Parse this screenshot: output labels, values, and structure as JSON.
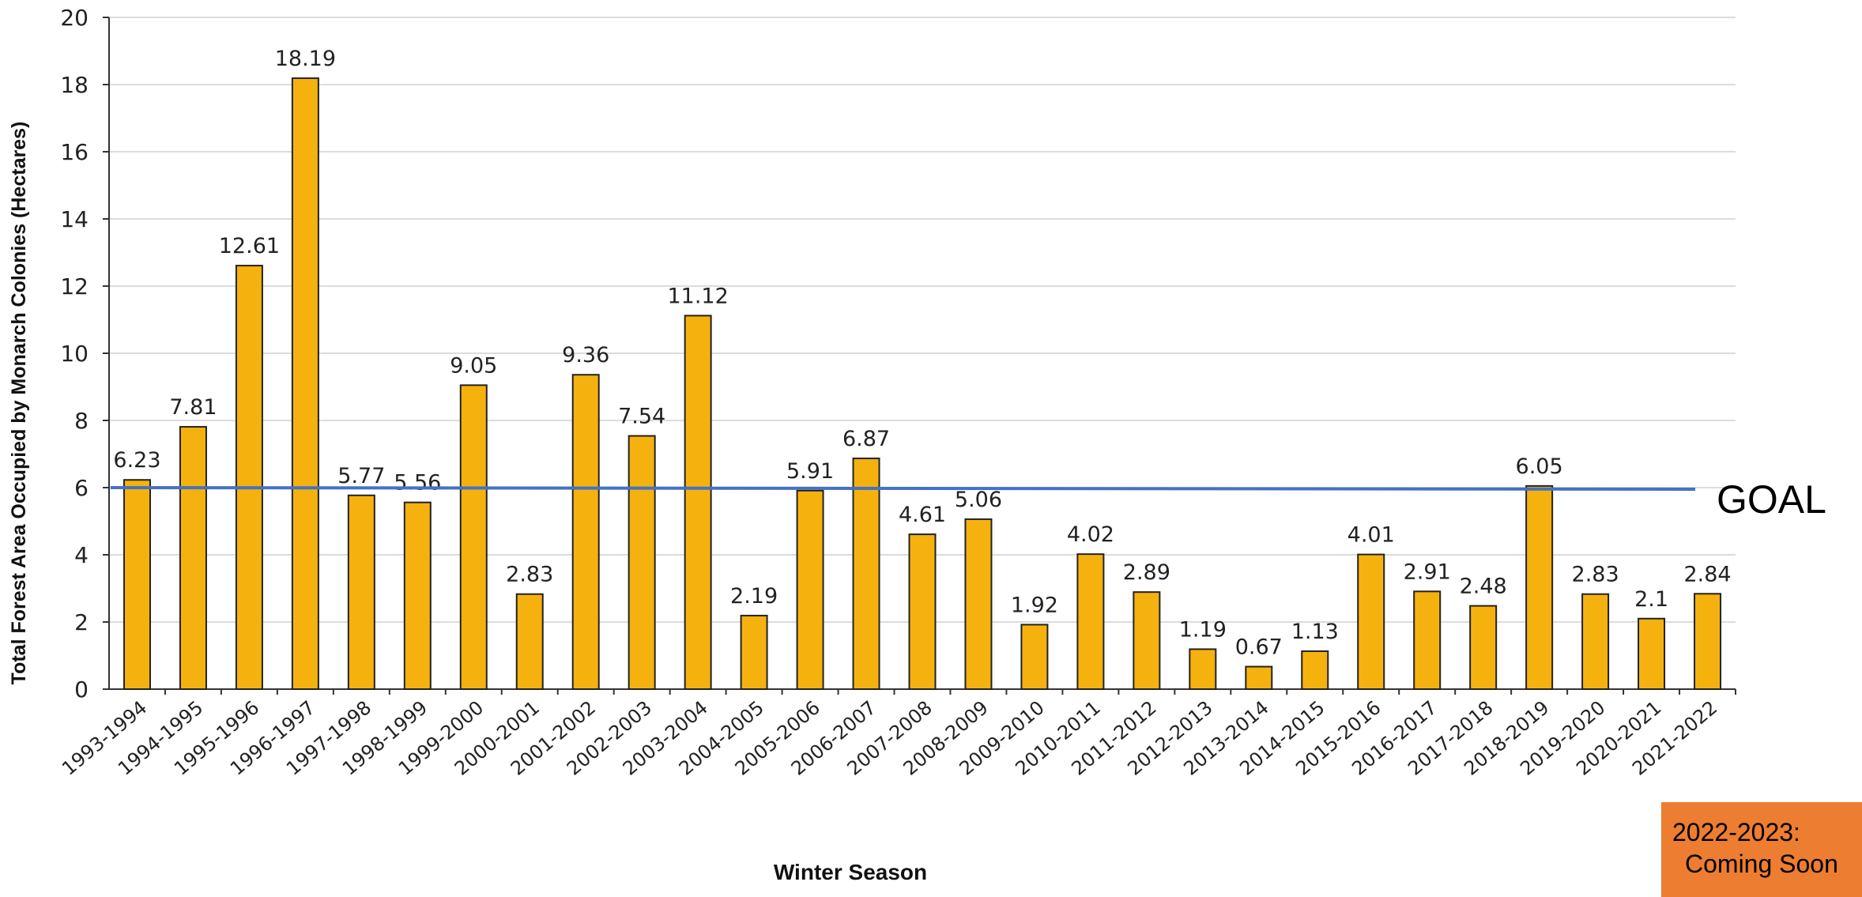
{
  "chart_data": {
    "type": "bar",
    "xlabel": "Winter Season",
    "ylabel": "Total Forest Area Occupied by Monarch Colonies (Hectares)",
    "ylim": [
      0,
      20
    ],
    "yticks": [
      0,
      2,
      4,
      6,
      8,
      10,
      12,
      14,
      16,
      18,
      20
    ],
    "grid": "horizontal",
    "bar_color": "#F5B20E",
    "categories": [
      "1993-1994",
      "1994-1995",
      "1995-1996",
      "1996-1997",
      "1997-1998",
      "1998-1999",
      "1999-2000",
      "2000-2001",
      "2001-2002",
      "2002-2003",
      "2003-2004",
      "2004-2005",
      "2005-2006",
      "2006-2007",
      "2007-2008",
      "2008-2009",
      "2009-2010",
      "2010-2011",
      "2011-2012",
      "2012-2013",
      "2013-2014",
      "2014-2015",
      "2015-2016",
      "2016-2017",
      "2017-2018",
      "2018-2019",
      "2019-2020",
      "2020-2021",
      "2021-2022"
    ],
    "values": [
      6.23,
      7.81,
      12.61,
      18.19,
      5.77,
      5.56,
      9.05,
      2.83,
      9.36,
      7.54,
      11.12,
      2.19,
      5.91,
      6.87,
      4.61,
      5.06,
      1.92,
      4.02,
      2.89,
      1.19,
      0.67,
      1.13,
      4.01,
      2.91,
      2.48,
      6.05,
      2.83,
      2.1,
      2.84
    ],
    "value_labels": [
      "6.23",
      "7.81",
      "12.61",
      "18.19",
      "5.77",
      "5.56",
      "9.05",
      "2.83",
      "9.36",
      "7.54",
      "11.12",
      "2.19",
      "5.91",
      "6.87",
      "4.61",
      "5.06",
      "1.92",
      "4.02",
      "2.89",
      "1.19",
      "0.67",
      "1.13",
      "4.01",
      "2.91",
      "2.48",
      "6.05",
      "2.83",
      "2.1",
      "2.84"
    ],
    "goal": {
      "value": 6,
      "label": "GOAL",
      "color": "#4472C4"
    }
  },
  "callout": {
    "line1": "2022-2023:",
    "line2": "Coming Soon",
    "color": "#ED7D31"
  }
}
